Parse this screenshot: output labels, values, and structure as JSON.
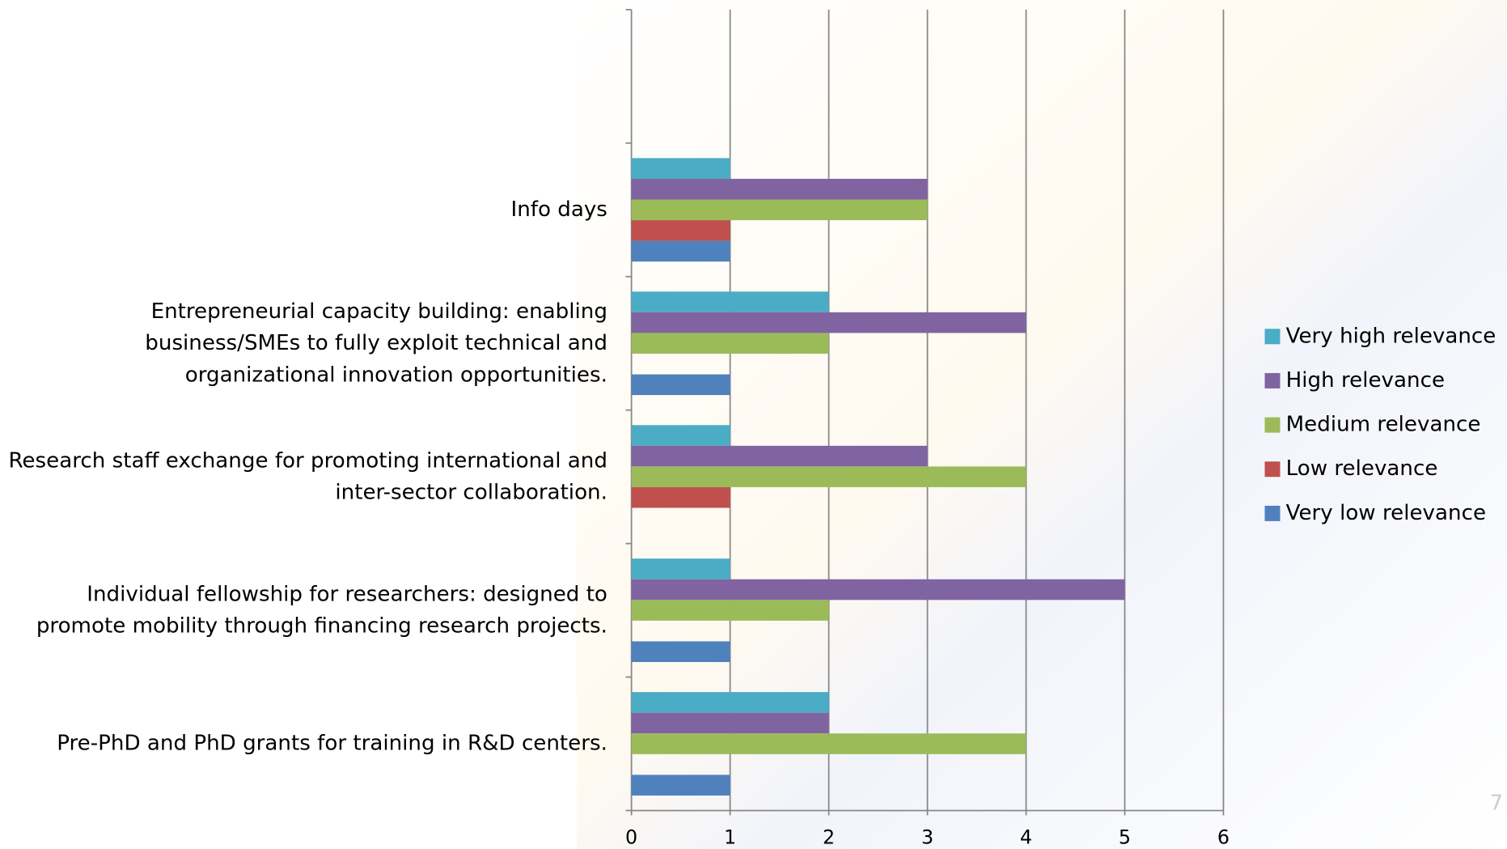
{
  "chart_data": {
    "type": "hbar",
    "categories": [
      null,
      "Info days",
      "Entrepreneurial capacity building: enabling\nbusiness/SMEs to fully exploit technical and\norganizational innovation opportunities.",
      "Research staff exchange for promoting international and\ninter-sector collaboration.",
      "Individual fellowship for researchers: designed to\npromote mobility  through financing research projects.",
      "Pre-PhD and PhD grants for training in R&D centers."
    ],
    "series": [
      {
        "name": "Very high relevance",
        "color": "#4bacc6",
        "values": [
          null,
          1,
          2,
          1,
          1,
          2
        ]
      },
      {
        "name": "High relevance",
        "color": "#8064a2",
        "values": [
          null,
          3,
          4,
          3,
          5,
          2
        ]
      },
      {
        "name": "Medium relevance",
        "color": "#9bbb59",
        "values": [
          null,
          3,
          2,
          4,
          2,
          4
        ]
      },
      {
        "name": "Low relevance",
        "color": "#c0504d",
        "values": [
          null,
          1,
          0,
          1,
          0,
          0
        ]
      },
      {
        "name": "Very low relevance",
        "color": "#4f81bd",
        "values": [
          null,
          1,
          1,
          0,
          1,
          1
        ]
      }
    ],
    "xlim": [
      0,
      6
    ],
    "xticks": [
      0,
      1,
      2,
      3,
      4,
      5,
      6
    ],
    "grid": true,
    "legend": "right",
    "page_number": "7"
  }
}
